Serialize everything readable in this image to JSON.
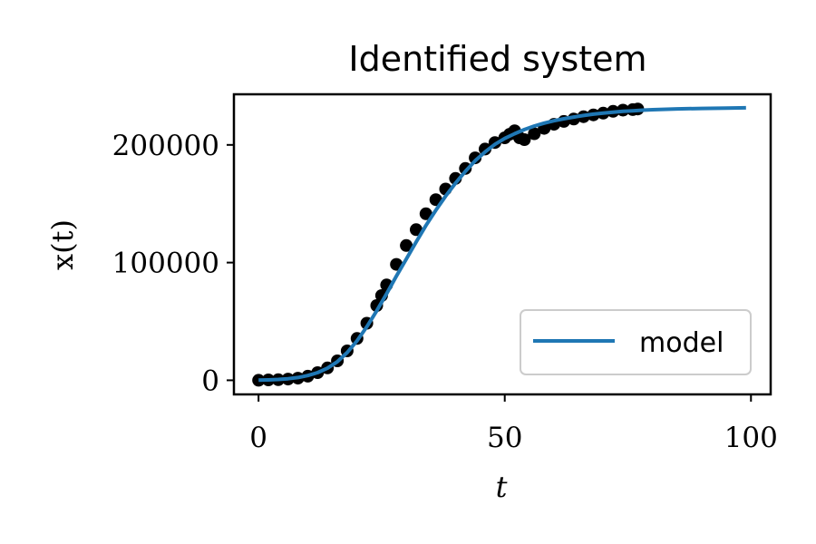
{
  "chart_data": {
    "type": "line",
    "title": "Identified system",
    "xlabel": "t",
    "ylabel": "x(t)",
    "xlim": [
      -5,
      104
    ],
    "ylim": [
      -12000,
      243000
    ],
    "xticks": [
      0,
      50,
      100
    ],
    "xtick_labels": [
      "0",
      "50",
      "100"
    ],
    "yticks": [
      0,
      100000,
      200000
    ],
    "ytick_labels": [
      "0",
      "100000",
      "200000"
    ],
    "grid": false,
    "legend": {
      "placement": "lower-right",
      "entries": [
        "model"
      ]
    },
    "colors": {
      "model": "#1f77b4",
      "observations": "#000000"
    },
    "series": [
      {
        "style": "scatter",
        "color": "#000000",
        "x": [
          0,
          2,
          4,
          6,
          8,
          10,
          12,
          14,
          16,
          18,
          20,
          22,
          24,
          25,
          26,
          28,
          30,
          32,
          34,
          36,
          38,
          40,
          42,
          44,
          46,
          48,
          50,
          51,
          52,
          53,
          54,
          56,
          58,
          60,
          62,
          64,
          66,
          68,
          70,
          72,
          74,
          76,
          77
        ],
        "y": [
          0,
          300,
          500,
          1000,
          1800,
          3500,
          6500,
          10500,
          16500,
          25000,
          35500,
          48500,
          63500,
          72000,
          81000,
          98500,
          114500,
          128000,
          141500,
          153500,
          162500,
          171500,
          180000,
          189000,
          196500,
          202000,
          206000,
          209000,
          212000,
          206000,
          204500,
          209500,
          214000,
          217500,
          220000,
          222000,
          224000,
          225500,
          227000,
          228500,
          229500,
          230000,
          230500
        ]
      },
      {
        "name": "model",
        "style": "line",
        "color": "#1f77b4",
        "x": [
          0,
          2,
          4,
          6,
          8,
          10,
          12,
          14,
          16,
          18,
          20,
          22,
          24,
          26,
          28,
          30,
          32,
          34,
          36,
          38,
          40,
          42,
          44,
          46,
          48,
          50,
          52,
          54,
          56,
          58,
          60,
          62,
          64,
          66,
          68,
          70,
          72,
          74,
          76,
          78,
          80,
          85,
          90,
          95,
          99
        ],
        "y": [
          100,
          300,
          700,
          1300,
          2300,
          4000,
          6500,
          10300,
          15800,
          23500,
          33500,
          45500,
          59000,
          73500,
          88500,
          103000,
          117500,
          131500,
          144500,
          156500,
          167500,
          177500,
          186500,
          194000,
          200500,
          205500,
          209500,
          213000,
          216000,
          218500,
          220500,
          222200,
          223700,
          225000,
          226100,
          227000,
          227800,
          228500,
          229000,
          229500,
          229900,
          230600,
          231000,
          231300,
          231500
        ]
      }
    ]
  }
}
